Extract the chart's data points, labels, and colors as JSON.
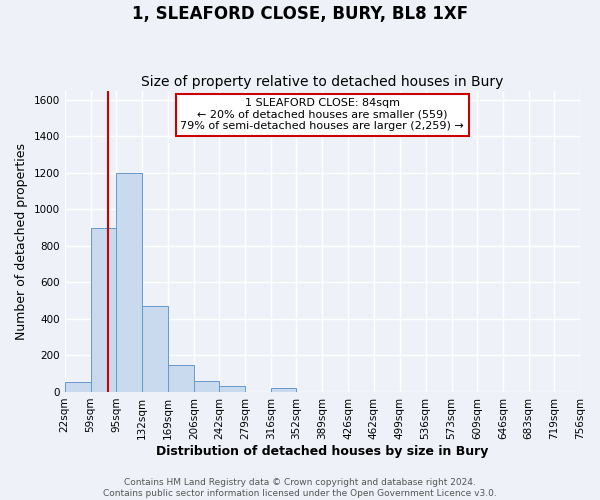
{
  "title": "1, SLEAFORD CLOSE, BURY, BL8 1XF",
  "subtitle": "Size of property relative to detached houses in Bury",
  "xlabel": "Distribution of detached houses by size in Bury",
  "ylabel": "Number of detached properties",
  "bar_values": [
    55,
    900,
    1200,
    470,
    150,
    60,
    30,
    0,
    20,
    0,
    0,
    0,
    0,
    0,
    0,
    0,
    0,
    0,
    0,
    0
  ],
  "bin_edges": [
    22,
    59,
    95,
    132,
    169,
    206,
    242,
    279,
    316,
    352,
    389,
    426,
    462,
    499,
    536,
    573,
    609,
    646,
    683,
    719,
    756
  ],
  "tick_labels": [
    "22sqm",
    "59sqm",
    "95sqm",
    "132sqm",
    "169sqm",
    "206sqm",
    "242sqm",
    "279sqm",
    "316sqm",
    "352sqm",
    "389sqm",
    "426sqm",
    "462sqm",
    "499sqm",
    "536sqm",
    "573sqm",
    "609sqm",
    "646sqm",
    "683sqm",
    "719sqm",
    "756sqm"
  ],
  "bar_color": "#c9d9ee",
  "bar_edge_color": "#6699cc",
  "property_line_x": 84,
  "ylim": [
    0,
    1650
  ],
  "yticks": [
    0,
    200,
    400,
    600,
    800,
    1000,
    1200,
    1400,
    1600
  ],
  "annotation_title": "1 SLEAFORD CLOSE: 84sqm",
  "annotation_line1": "← 20% of detached houses are smaller (559)",
  "annotation_line2": "79% of semi-detached houses are larger (2,259) →",
  "annotation_box_color": "#ffffff",
  "annotation_box_edge": "#cc0000",
  "vline_color": "#cc0000",
  "footer1": "Contains HM Land Registry data © Crown copyright and database right 2024.",
  "footer2": "Contains public sector information licensed under the Open Government Licence v3.0.",
  "background_color": "#eef2f8",
  "grid_color": "#ffffff",
  "title_fontsize": 12,
  "subtitle_fontsize": 10,
  "axis_label_fontsize": 9,
  "tick_fontsize": 7.5,
  "footer_fontsize": 6.5,
  "annotation_fontsize": 8
}
